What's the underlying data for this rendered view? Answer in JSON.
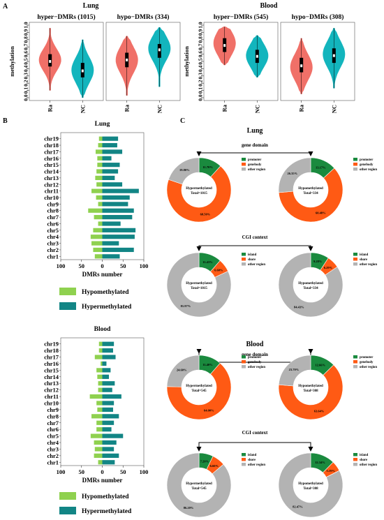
{
  "colors": {
    "red": "#f07068",
    "teal": "#13b5bd",
    "hypo_green": "#8fd14f",
    "hyper_teal": "#128585",
    "promoter": "#1a8a3e",
    "genebody": "#ff5a14",
    "other": "#b3b3b3"
  },
  "panels": {
    "a": "A",
    "b": "B",
    "c": "C"
  },
  "violin": {
    "tissues": [
      "Lung",
      "Blood"
    ],
    "ylabel": "methylation",
    "yticks": [
      "0.0",
      "0.1",
      "0.2",
      "0.3",
      "0.4",
      "0.5",
      "0.6",
      "0.7",
      "0.8",
      "0.9",
      "1.0"
    ],
    "categories": [
      "Ra",
      "NC"
    ]
  },
  "chart_data": [
    {
      "type": "violin",
      "tissue": "Lung",
      "title": "hyper−DMRs (1015)",
      "categories": [
        "Ra",
        "NC"
      ],
      "ylim": [
        0,
        1
      ],
      "ylabel": "methylation",
      "series": [
        {
          "group": "Ra",
          "min": 0.1,
          "q1": 0.43,
          "median": 0.5,
          "q3": 0.6,
          "max": 0.96,
          "peak": 0.52
        },
        {
          "group": "NC",
          "min": 0.0,
          "q1": 0.28,
          "median": 0.37,
          "q3": 0.48,
          "max": 0.8,
          "peak": 0.38
        }
      ]
    },
    {
      "type": "violin",
      "tissue": "Lung",
      "title": "hypo−DMRs (334)",
      "categories": [
        "Ra",
        "NC"
      ],
      "ylim": [
        0,
        1
      ],
      "ylabel": "methylation",
      "series": [
        {
          "group": "Ra",
          "min": 0.03,
          "q1": 0.42,
          "median": 0.52,
          "q3": 0.62,
          "max": 0.85,
          "peak": 0.52
        },
        {
          "group": "NC",
          "min": 0.15,
          "q1": 0.55,
          "median": 0.66,
          "q3": 0.74,
          "max": 0.97,
          "peak": 0.68
        }
      ]
    },
    {
      "type": "violin",
      "tissue": "Blood",
      "title": "hyper−DMRs (545)",
      "categories": [
        "Ra",
        "NC"
      ],
      "ylim": [
        0,
        1
      ],
      "ylabel": "methylation",
      "series": [
        {
          "group": "Ra",
          "min": 0.45,
          "q1": 0.63,
          "median": 0.72,
          "q3": 0.82,
          "max": 0.98,
          "peak": 0.75
        },
        {
          "group": "NC",
          "min": 0.28,
          "q1": 0.48,
          "median": 0.57,
          "q3": 0.66,
          "max": 0.86,
          "peak": 0.58
        }
      ]
    },
    {
      "type": "violin",
      "tissue": "Blood",
      "title": "hypo−DMRs (308)",
      "categories": [
        "Ra",
        "NC"
      ],
      "ylim": [
        0,
        1
      ],
      "ylabel": "methylation",
      "series": [
        {
          "group": "Ra",
          "min": 0.05,
          "q1": 0.35,
          "median": 0.44,
          "q3": 0.55,
          "max": 0.82,
          "peak": 0.42
        },
        {
          "group": "NC",
          "min": 0.13,
          "q1": 0.48,
          "median": 0.58,
          "q3": 0.68,
          "max": 0.96,
          "peak": 0.6
        }
      ]
    },
    {
      "type": "bar",
      "orientation": "horizontal",
      "tissue": "Lung",
      "title": "Lung",
      "categories": [
        "chr19",
        "chr18",
        "chr17",
        "chr16",
        "chr15",
        "chr14",
        "chr13",
        "chr12",
        "chr11",
        "chr10",
        "chr9",
        "chr8",
        "chr7",
        "chr6",
        "chr5",
        "chr4",
        "chr3",
        "chr2",
        "chr1"
      ],
      "xlabel": "DMRs number",
      "xticks": [
        "100",
        "50",
        "0",
        "50",
        "100"
      ],
      "xlim": [
        -100,
        100
      ],
      "series": [
        {
          "name": "Hypomethylated",
          "values": [
            8,
            10,
            16,
            12,
            12,
            14,
            17,
            14,
            26,
            15,
            10,
            34,
            20,
            10,
            22,
            28,
            26,
            22,
            18
          ]
        },
        {
          "name": "Hypermethylated",
          "values": [
            38,
            36,
            48,
            22,
            42,
            38,
            30,
            48,
            88,
            66,
            62,
            76,
            72,
            44,
            80,
            78,
            40,
            76,
            42
          ]
        }
      ],
      "legend": [
        "Hypomethylated",
        "Hypermethylated"
      ]
    },
    {
      "type": "bar",
      "orientation": "horizontal",
      "tissue": "Blood",
      "title": "Blood",
      "categories": [
        "chr19",
        "chr18",
        "chr17",
        "chr16",
        "chr15",
        "chr14",
        "chr13",
        "chr12",
        "chr11",
        "chr10",
        "chr9",
        "chr8",
        "chr7",
        "chr6",
        "chr5",
        "chr4",
        "chr3",
        "chr2",
        "chr1"
      ],
      "xlabel": "DMRs number",
      "xticks": [
        "100",
        "50",
        "0",
        "50",
        "100"
      ],
      "xlim": [
        -100,
        100
      ],
      "series": [
        {
          "name": "Hypomethylated",
          "values": [
            8,
            8,
            18,
            4,
            14,
            12,
            10,
            10,
            30,
            14,
            12,
            26,
            14,
            14,
            28,
            20,
            18,
            20,
            10
          ]
        },
        {
          "name": "Hypermethylated",
          "values": [
            28,
            26,
            32,
            10,
            20,
            16,
            30,
            24,
            46,
            28,
            26,
            40,
            28,
            22,
            50,
            34,
            28,
            40,
            30
          ]
        }
      ],
      "legend": [
        "Hypomethylated",
        "Hypermethylated"
      ]
    },
    {
      "type": "pie",
      "style": "donut",
      "tissue": "Lung",
      "context": "gene domain",
      "center": [
        "Hypermethylated",
        "Total=1015"
      ],
      "categories": [
        "promoter",
        "genebody",
        "other region"
      ],
      "values": [
        11.7,
        68.5,
        19.8
      ],
      "labels": [
        "11.70%",
        "68.50%",
        "19.80%"
      ]
    },
    {
      "type": "pie",
      "style": "donut",
      "tissue": "Lung",
      "context": "gene domain",
      "center": [
        "Hypomethylated",
        "Total=334"
      ],
      "categories": [
        "promoter",
        "genebody",
        "other region"
      ],
      "values": [
        13.17,
        60.48,
        26.35
      ],
      "labels": [
        "13.17%",
        "60.48%",
        "26.35%"
      ]
    },
    {
      "type": "pie",
      "style": "donut",
      "tissue": "Lung",
      "context": "CGI context",
      "center": [
        "Hypermethylated",
        "Total=1015"
      ],
      "categories": [
        "island",
        "shore",
        "other region"
      ],
      "values": [
        11.43,
        6.6,
        81.97
      ],
      "labels": [
        "11.43%",
        "6.60%",
        "81.97%"
      ]
    },
    {
      "type": "pie",
      "style": "donut",
      "tissue": "Lung",
      "context": "CGI context",
      "center": [
        "Hypomethylated",
        "Total=334"
      ],
      "categories": [
        "island",
        "shore",
        "other region"
      ],
      "values": [
        9.28,
        6.29,
        84.43
      ],
      "labels": [
        "9.28%",
        "6.29%",
        "84.43%"
      ]
    },
    {
      "type": "pie",
      "style": "donut",
      "tissue": "Blood",
      "context": "gene domain",
      "center": [
        "Hypermethylated",
        "Total=545"
      ],
      "categories": [
        "promoter",
        "genebody",
        "other region"
      ],
      "values": [
        11.4,
        64.0,
        24.6
      ],
      "labels": [
        "11.40%",
        "64.00%",
        "24.60%"
      ]
    },
    {
      "type": "pie",
      "style": "donut",
      "tissue": "Blood",
      "context": "gene domain",
      "center": [
        "Hypomethylated",
        "Total=308"
      ],
      "categories": [
        "promoter",
        "genebody",
        "other region"
      ],
      "values": [
        12.66,
        63.64,
        23.7
      ],
      "labels": [
        "12.66%",
        "63.64%",
        "23.70%"
      ]
    },
    {
      "type": "pie",
      "style": "donut",
      "tissue": "Blood",
      "context": "CGI context",
      "center": [
        "Hypermethylated",
        "Total=545"
      ],
      "categories": [
        "island",
        "shore",
        "other region"
      ],
      "values": [
        7.2,
        6.6,
        86.2
      ],
      "labels": [
        "7.20%",
        "6.60%",
        "86.20%"
      ]
    },
    {
      "type": "pie",
      "style": "donut",
      "tissue": "Blood",
      "context": "CGI context",
      "center": [
        "Hypomethylated",
        "Total=308"
      ],
      "categories": [
        "island",
        "shore",
        "other region"
      ],
      "values": [
        12.34,
        5.19,
        82.47
      ],
      "labels": [
        "12.34%",
        "5.19%",
        "82.47%"
      ]
    }
  ]
}
